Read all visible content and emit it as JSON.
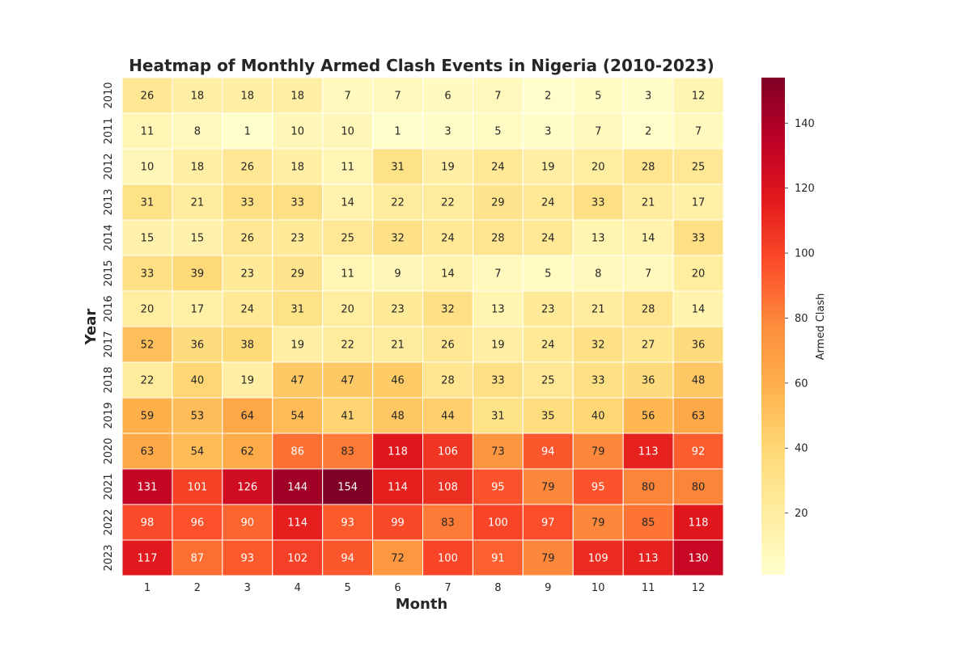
{
  "chart_data": {
    "type": "heatmap",
    "title": "Heatmap of Monthly Armed Clash Events in Nigeria (2010-2023)",
    "xlabel": "Month",
    "ylabel": "Year",
    "colorbar_label": "Armed Clash",
    "colormap": "YlOrRd",
    "value_range": [
      1,
      154
    ],
    "colorbar_ticks": [
      20,
      40,
      60,
      80,
      100,
      120,
      140
    ],
    "months": [
      "1",
      "2",
      "3",
      "4",
      "5",
      "6",
      "7",
      "8",
      "9",
      "10",
      "11",
      "12"
    ],
    "years": [
      "2010",
      "2011",
      "2012",
      "2013",
      "2014",
      "2015",
      "2016",
      "2017",
      "2018",
      "2019",
      "2020",
      "2021",
      "2022",
      "2023"
    ],
    "values": [
      [
        26,
        18,
        18,
        18,
        7,
        7,
        6,
        7,
        2,
        5,
        3,
        12
      ],
      [
        11,
        8,
        1,
        10,
        10,
        1,
        3,
        5,
        3,
        7,
        2,
        7
      ],
      [
        10,
        18,
        26,
        18,
        11,
        31,
        19,
        24,
        19,
        20,
        28,
        25
      ],
      [
        31,
        21,
        33,
        33,
        14,
        22,
        22,
        29,
        24,
        33,
        21,
        17
      ],
      [
        15,
        15,
        26,
        23,
        25,
        32,
        24,
        28,
        24,
        13,
        14,
        33
      ],
      [
        33,
        39,
        23,
        29,
        11,
        9,
        14,
        7,
        5,
        8,
        7,
        20
      ],
      [
        20,
        17,
        24,
        31,
        20,
        23,
        32,
        13,
        23,
        21,
        28,
        14
      ],
      [
        52,
        36,
        38,
        19,
        22,
        21,
        26,
        19,
        24,
        32,
        27,
        36
      ],
      [
        22,
        40,
        19,
        47,
        47,
        46,
        28,
        33,
        25,
        33,
        36,
        48
      ],
      [
        59,
        53,
        64,
        54,
        41,
        48,
        44,
        31,
        35,
        40,
        56,
        63
      ],
      [
        63,
        54,
        62,
        86,
        83,
        118,
        106,
        73,
        94,
        79,
        113,
        92
      ],
      [
        131,
        101,
        126,
        144,
        154,
        114,
        108,
        95,
        79,
        95,
        80,
        80
      ],
      [
        98,
        96,
        90,
        114,
        93,
        99,
        83,
        100,
        97,
        79,
        85,
        118
      ],
      [
        117,
        87,
        93,
        102,
        94,
        72,
        100,
        91,
        79,
        109,
        113,
        130
      ]
    ],
    "grid": false,
    "legend": "colorbar-right"
  }
}
